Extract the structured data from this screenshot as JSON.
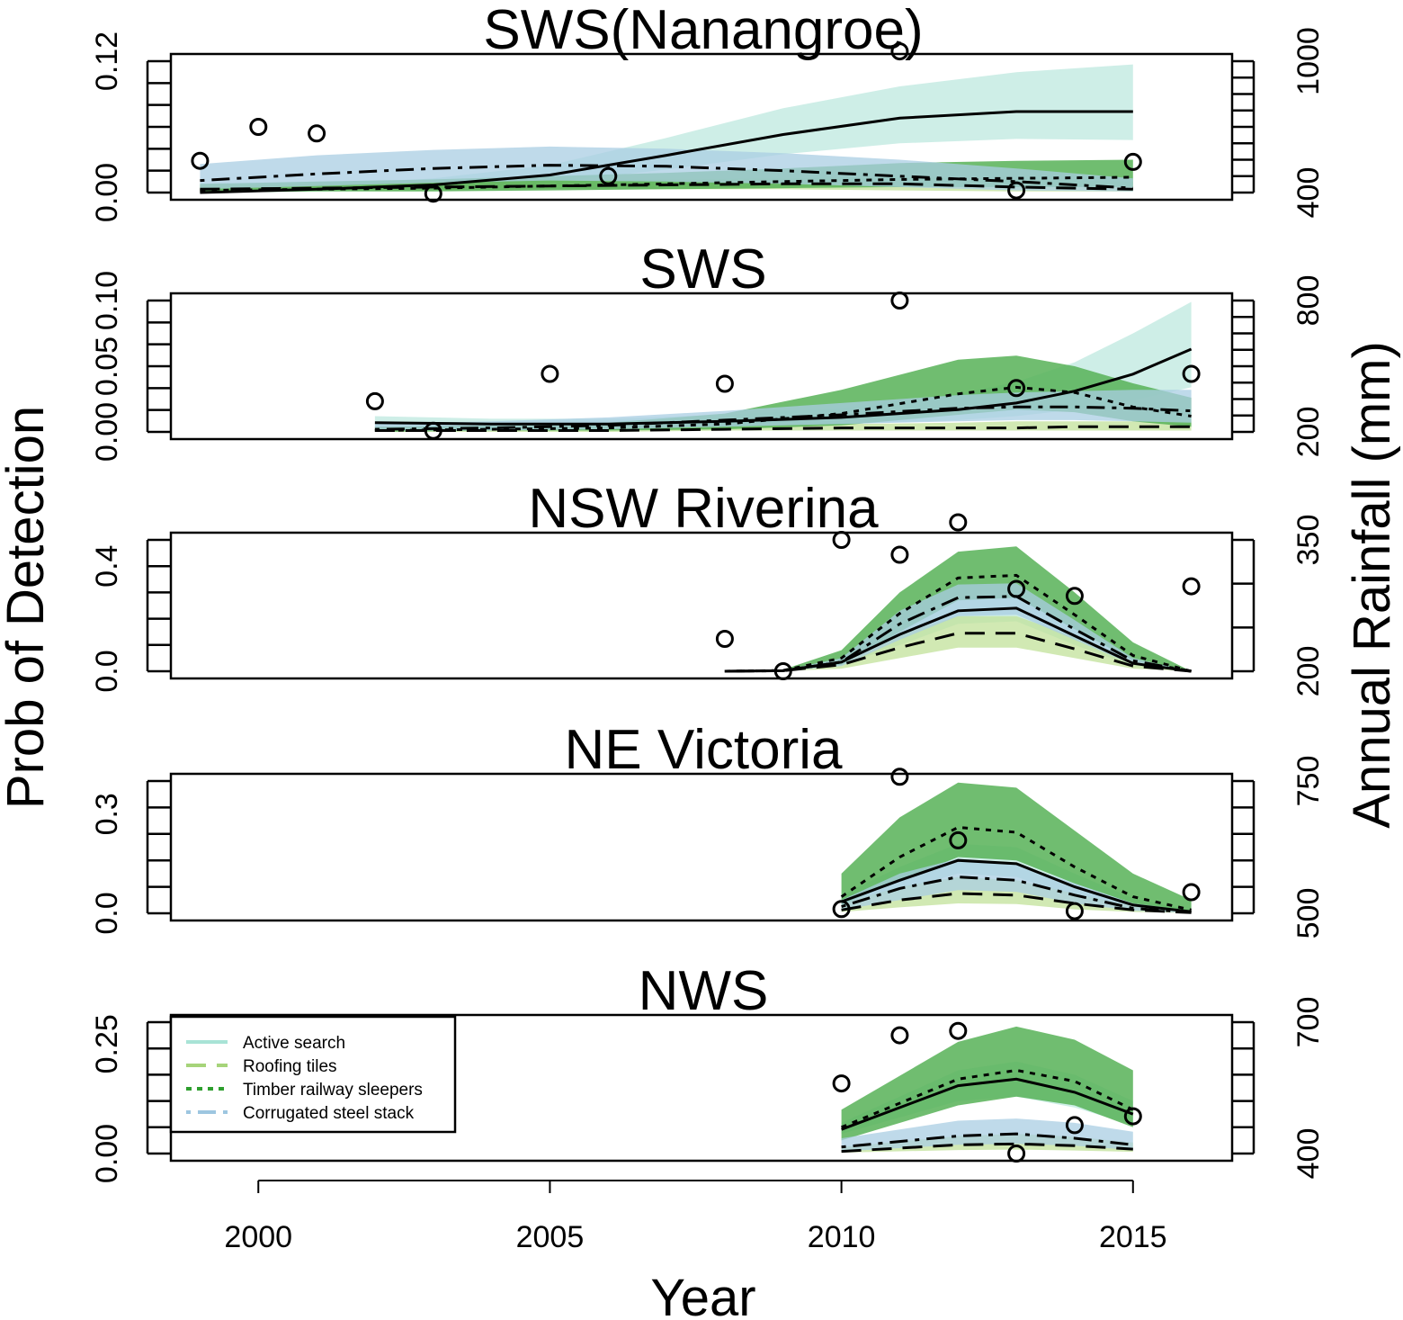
{
  "axes": {
    "xlabel": "Year",
    "ylabel_left": "Prob of Detection",
    "ylabel_right": "Annual Rainfall (mm)",
    "x_ticks": [
      2000,
      2005,
      2010,
      2015
    ],
    "x_tick_labels": [
      "2000",
      "2005",
      "2010",
      "2015"
    ],
    "xlim": [
      1998.5,
      2016.7
    ]
  },
  "legend": {
    "placement": "bottom panel, top-left",
    "items": [
      {
        "label": "Active search",
        "color": "#a8e3d6",
        "dash": "solid"
      },
      {
        "label": "Roofing tiles",
        "color": "#a6d47a",
        "dash": "long-dash"
      },
      {
        "label": "Timber railway sleepers",
        "color": "#2e9e2e",
        "dash": "dotted"
      },
      {
        "label": "Corrugated steel stack",
        "color": "#9dc6e0",
        "dash": "dot-dash"
      }
    ]
  },
  "colors": {
    "active_search_band": "#bde8df",
    "roofing_tiles_band": "#c2e29a",
    "timber_band": "#57b157",
    "corrugated_band": "#a9cde3",
    "line": "#000000"
  },
  "chart_data": [
    {
      "type": "line",
      "title": "SWS(Nanangroe)",
      "ylim": [
        0,
        0.12
      ],
      "y_ticks": [
        0.0,
        0.12
      ],
      "y_tick_labels": [
        "0.00",
        "0.12"
      ],
      "y_minor_count": 7,
      "rain_lim": [
        400,
        1000
      ],
      "rain_ticks": [
        400,
        1000
      ],
      "rain_tick_labels": [
        "400",
        "1000"
      ],
      "rain_minor_count": 9,
      "x": [
        1999,
        2001,
        2003,
        2005,
        2007,
        2009,
        2011,
        2013,
        2015
      ],
      "series": [
        {
          "name": "Active search",
          "style": "solid",
          "fill": "#bde8df",
          "values": [
            0.0,
            0.003,
            0.007,
            0.016,
            0.034,
            0.053,
            0.068,
            0.074,
            0.074
          ],
          "lower": [
            0.0,
            0.001,
            0.003,
            0.009,
            0.021,
            0.035,
            0.045,
            0.049,
            0.048
          ],
          "upper": [
            0.003,
            0.006,
            0.013,
            0.025,
            0.05,
            0.077,
            0.097,
            0.11,
            0.117
          ]
        },
        {
          "name": "Roofing tiles",
          "style": "long-dash",
          "fill": "#c2e29a",
          "values": [
            0.003,
            0.004,
            0.005,
            0.006,
            0.007,
            0.008,
            0.008,
            0.005,
            0.003
          ],
          "lower": [
            0.001,
            0.002,
            0.002,
            0.003,
            0.003,
            0.003,
            0.002,
            0.001,
            0.001
          ],
          "upper": [
            0.007,
            0.008,
            0.01,
            0.011,
            0.012,
            0.013,
            0.014,
            0.012,
            0.01
          ]
        },
        {
          "name": "Timber railway sleepers",
          "style": "dotted",
          "fill": "#57b157",
          "values": [
            0.002,
            0.003,
            0.004,
            0.006,
            0.008,
            0.01,
            0.012,
            0.013,
            0.014
          ],
          "lower": [
            0.0,
            0.001,
            0.001,
            0.002,
            0.003,
            0.004,
            0.005,
            0.005,
            0.005
          ],
          "upper": [
            0.008,
            0.01,
            0.012,
            0.015,
            0.018,
            0.022,
            0.027,
            0.029,
            0.03
          ]
        },
        {
          "name": "Corrugated steel stack",
          "style": "dot-dash",
          "fill": "#a9cde3",
          "values": [
            0.011,
            0.017,
            0.022,
            0.025,
            0.024,
            0.02,
            0.015,
            0.01,
            0.004
          ],
          "lower": [
            0.003,
            0.006,
            0.009,
            0.011,
            0.01,
            0.008,
            0.005,
            0.002,
            0.001
          ],
          "upper": [
            0.026,
            0.034,
            0.039,
            0.042,
            0.04,
            0.036,
            0.03,
            0.022,
            0.013
          ]
        }
      ],
      "rainfall_points": {
        "x": [
          1999,
          2000,
          2001,
          2003,
          2006,
          2011,
          2013,
          2015
        ],
        "values": [
          545,
          700,
          670,
          395,
          475,
          1045,
          410,
          540
        ]
      }
    },
    {
      "type": "line",
      "title": "SWS",
      "ylim": [
        0,
        0.1
      ],
      "y_ticks": [
        0.0,
        0.05,
        0.1
      ],
      "y_tick_labels": [
        "0.00",
        "0.05",
        "0.10"
      ],
      "y_minor_count": 7,
      "rain_lim": [
        200,
        800
      ],
      "rain_ticks": [
        200,
        800
      ],
      "rain_tick_labels": [
        "200",
        "800"
      ],
      "rain_minor_count": 9,
      "x": [
        2002,
        2004,
        2006,
        2008,
        2010,
        2012,
        2013,
        2014,
        2015,
        2016
      ],
      "series": [
        {
          "name": "Active search",
          "style": "solid",
          "fill": "#bde8df",
          "values": [
            0.007,
            0.006,
            0.006,
            0.008,
            0.011,
            0.017,
            0.022,
            0.031,
            0.044,
            0.063
          ],
          "lower": [
            0.004,
            0.003,
            0.003,
            0.004,
            0.006,
            0.009,
            0.012,
            0.017,
            0.024,
            0.034
          ],
          "upper": [
            0.012,
            0.01,
            0.01,
            0.013,
            0.018,
            0.029,
            0.038,
            0.053,
            0.075,
            0.099
          ]
        },
        {
          "name": "Roofing tiles",
          "style": "long-dash",
          "fill": "#c2e29a",
          "values": [
            0.001,
            0.001,
            0.001,
            0.002,
            0.003,
            0.003,
            0.003,
            0.004,
            0.004,
            0.004
          ],
          "lower": [
            0.0,
            0.0,
            0.0,
            0.001,
            0.001,
            0.001,
            0.001,
            0.001,
            0.001,
            0.001
          ],
          "upper": [
            0.003,
            0.003,
            0.003,
            0.004,
            0.006,
            0.007,
            0.008,
            0.008,
            0.008,
            0.008
          ]
        },
        {
          "name": "Timber railway sleepers",
          "style": "dotted",
          "fill": "#57b157",
          "values": [
            0.001,
            0.002,
            0.003,
            0.006,
            0.014,
            0.029,
            0.034,
            0.03,
            0.019,
            0.012
          ],
          "lower": [
            0.0,
            0.001,
            0.001,
            0.002,
            0.005,
            0.013,
            0.017,
            0.015,
            0.008,
            0.004
          ],
          "upper": [
            0.004,
            0.005,
            0.007,
            0.014,
            0.032,
            0.055,
            0.058,
            0.05,
            0.037,
            0.026
          ]
        },
        {
          "name": "Corrugated steel stack",
          "style": "dot-dash",
          "fill": "#a9cde3",
          "values": [
            0.002,
            0.003,
            0.005,
            0.009,
            0.013,
            0.018,
            0.019,
            0.019,
            0.018,
            0.016
          ],
          "lower": [
            0.001,
            0.001,
            0.002,
            0.004,
            0.006,
            0.008,
            0.009,
            0.009,
            0.008,
            0.007
          ],
          "upper": [
            0.006,
            0.008,
            0.011,
            0.016,
            0.022,
            0.028,
            0.03,
            0.031,
            0.032,
            0.032
          ]
        }
      ],
      "rainfall_points": {
        "x": [
          2002,
          2003,
          2005,
          2008,
          2011,
          2013,
          2016
        ],
        "values": [
          340,
          205,
          465,
          420,
          800,
          400,
          465
        ]
      }
    },
    {
      "type": "line",
      "title": "NSW Riverina",
      "ylim": [
        0,
        0.5
      ],
      "y_ticks": [
        0.0,
        0.4
      ],
      "y_tick_labels": [
        "0.0",
        "0.4"
      ],
      "y_minor_count": 6,
      "rain_lim": [
        200,
        350
      ],
      "rain_ticks": [
        200,
        350
      ],
      "rain_tick_labels": [
        "200",
        "350"
      ],
      "rain_minor_count": 4,
      "x": [
        2008,
        2009,
        2010,
        2011,
        2012,
        2013,
        2014,
        2015,
        2016
      ],
      "series": [
        {
          "name": "Active search",
          "style": "solid",
          "fill": "#bde8df",
          "values": [
            0.0,
            0.002,
            0.035,
            0.14,
            0.23,
            0.24,
            0.135,
            0.03,
            0.0
          ],
          "lower": [
            0.0,
            0.001,
            0.022,
            0.1,
            0.18,
            0.19,
            0.1,
            0.02,
            0.0
          ],
          "upper": [
            0.0,
            0.004,
            0.05,
            0.18,
            0.28,
            0.29,
            0.17,
            0.04,
            0.0
          ]
        },
        {
          "name": "Roofing tiles",
          "style": "long-dash",
          "fill": "#c2e29a",
          "values": [
            0.0,
            0.002,
            0.025,
            0.09,
            0.145,
            0.145,
            0.085,
            0.02,
            0.0
          ],
          "lower": [
            0.0,
            0.001,
            0.01,
            0.05,
            0.09,
            0.09,
            0.05,
            0.01,
            0.0
          ],
          "upper": [
            0.0,
            0.004,
            0.045,
            0.14,
            0.21,
            0.21,
            0.13,
            0.04,
            0.0
          ]
        },
        {
          "name": "Timber railway sleepers",
          "style": "dotted",
          "fill": "#57b157",
          "values": [
            0.0,
            0.003,
            0.05,
            0.22,
            0.355,
            0.365,
            0.215,
            0.06,
            0.0
          ],
          "lower": [
            0.0,
            0.001,
            0.025,
            0.15,
            0.27,
            0.28,
            0.16,
            0.04,
            0.0
          ],
          "upper": [
            0.0,
            0.006,
            0.08,
            0.3,
            0.455,
            0.475,
            0.3,
            0.11,
            0.0
          ]
        },
        {
          "name": "Corrugated steel stack",
          "style": "dot-dash",
          "fill": "#a9cde3",
          "values": [
            0.0,
            0.002,
            0.035,
            0.18,
            0.28,
            0.285,
            0.16,
            0.04,
            0.0
          ],
          "lower": [
            0.0,
            0.001,
            0.02,
            0.12,
            0.21,
            0.215,
            0.12,
            0.025,
            0.0
          ],
          "upper": [
            0.0,
            0.004,
            0.05,
            0.23,
            0.33,
            0.335,
            0.195,
            0.05,
            0.0
          ]
        }
      ],
      "rainfall_points": {
        "x": [
          2008,
          2009,
          2010,
          2011,
          2012,
          2013,
          2014,
          2016
        ],
        "values": [
          237,
          200,
          350,
          333,
          370,
          294,
          286,
          297
        ]
      }
    },
    {
      "type": "line",
      "title": "NE Victoria",
      "ylim": [
        0,
        0.4
      ],
      "y_ticks": [
        0.0,
        0.3
      ],
      "y_tick_labels": [
        "0.0",
        "0.3"
      ],
      "y_minor_count": 6,
      "rain_lim": [
        500,
        750
      ],
      "rain_ticks": [
        500,
        750
      ],
      "rain_tick_labels": [
        "500",
        "750"
      ],
      "rain_minor_count": 6,
      "x": [
        2010,
        2011,
        2012,
        2013,
        2014,
        2015,
        2016
      ],
      "series": [
        {
          "name": "Active search",
          "style": "solid",
          "fill": "#bde8df",
          "values": [
            0.035,
            0.1,
            0.16,
            0.15,
            0.08,
            0.025,
            0.005
          ],
          "lower": [
            0.02,
            0.07,
            0.12,
            0.11,
            0.05,
            0.012,
            0.002
          ],
          "upper": [
            0.055,
            0.14,
            0.21,
            0.2,
            0.12,
            0.045,
            0.01
          ]
        },
        {
          "name": "Roofing tiles",
          "style": "long-dash",
          "fill": "#c2e29a",
          "values": [
            0.01,
            0.04,
            0.06,
            0.055,
            0.03,
            0.01,
            0.002
          ],
          "lower": [
            0.004,
            0.018,
            0.03,
            0.028,
            0.012,
            0.004,
            0.001
          ],
          "upper": [
            0.03,
            0.08,
            0.11,
            0.1,
            0.06,
            0.022,
            0.006
          ]
        },
        {
          "name": "Timber railway sleepers",
          "style": "dotted",
          "fill": "#57b157",
          "values": [
            0.05,
            0.17,
            0.26,
            0.245,
            0.14,
            0.05,
            0.01
          ],
          "lower": [
            0.025,
            0.1,
            0.17,
            0.16,
            0.09,
            0.03,
            0.005
          ],
          "upper": [
            0.12,
            0.29,
            0.395,
            0.38,
            0.25,
            0.12,
            0.04
          ]
        },
        {
          "name": "Corrugated steel stack",
          "style": "dot-dash",
          "fill": "#a9cde3",
          "values": [
            0.02,
            0.075,
            0.11,
            0.1,
            0.055,
            0.015,
            0.003
          ],
          "lower": [
            0.01,
            0.04,
            0.07,
            0.065,
            0.03,
            0.008,
            0.001
          ],
          "upper": [
            0.04,
            0.12,
            0.165,
            0.15,
            0.09,
            0.03,
            0.008
          ]
        }
      ],
      "rainfall_points": {
        "x": [
          2010,
          2011,
          2012,
          2014,
          2016
        ],
        "values": [
          508,
          758,
          638,
          504,
          540
        ]
      }
    },
    {
      "type": "line",
      "title": "NWS",
      "ylim": [
        0,
        0.3
      ],
      "y_ticks": [
        0.0,
        0.25
      ],
      "y_tick_labels": [
        "0.00",
        "0.25"
      ],
      "y_minor_count": 6,
      "rain_lim": [
        400,
        700
      ],
      "rain_ticks": [
        400,
        700
      ],
      "rain_tick_labels": [
        "400",
        "700"
      ],
      "rain_minor_count": 6,
      "x": [
        2010,
        2012,
        2013,
        2014,
        2015
      ],
      "series": [
        {
          "name": "Active search",
          "style": "solid",
          "fill": "#bde8df",
          "values": [
            0.055,
            0.155,
            0.17,
            0.14,
            0.09
          ],
          "lower": [
            0.045,
            0.12,
            0.13,
            0.105,
            0.065
          ],
          "upper": [
            0.07,
            0.19,
            0.21,
            0.18,
            0.12
          ]
        },
        {
          "name": "Roofing tiles",
          "style": "long-dash",
          "fill": "#c2e29a",
          "values": [
            0.005,
            0.02,
            0.022,
            0.018,
            0.01
          ],
          "lower": [
            0.002,
            0.008,
            0.009,
            0.007,
            0.004
          ],
          "upper": [
            0.015,
            0.04,
            0.045,
            0.038,
            0.025
          ]
        },
        {
          "name": "Timber railway sleepers",
          "style": "dotted",
          "fill": "#57b157",
          "values": [
            0.06,
            0.17,
            0.19,
            0.165,
            0.1
          ],
          "lower": [
            0.03,
            0.11,
            0.13,
            0.11,
            0.06
          ],
          "upper": [
            0.1,
            0.255,
            0.29,
            0.26,
            0.19
          ]
        },
        {
          "name": "Corrugated steel stack",
          "style": "dot-dash",
          "fill": "#a9cde3",
          "values": [
            0.015,
            0.04,
            0.045,
            0.035,
            0.02
          ],
          "lower": [
            0.005,
            0.02,
            0.022,
            0.018,
            0.008
          ],
          "upper": [
            0.035,
            0.075,
            0.08,
            0.07,
            0.05
          ]
        }
      ],
      "rainfall_points": {
        "x": [
          2010,
          2011,
          2012,
          2013,
          2014,
          2015
        ],
        "values": [
          560,
          670,
          680,
          400,
          465,
          485
        ]
      }
    }
  ]
}
